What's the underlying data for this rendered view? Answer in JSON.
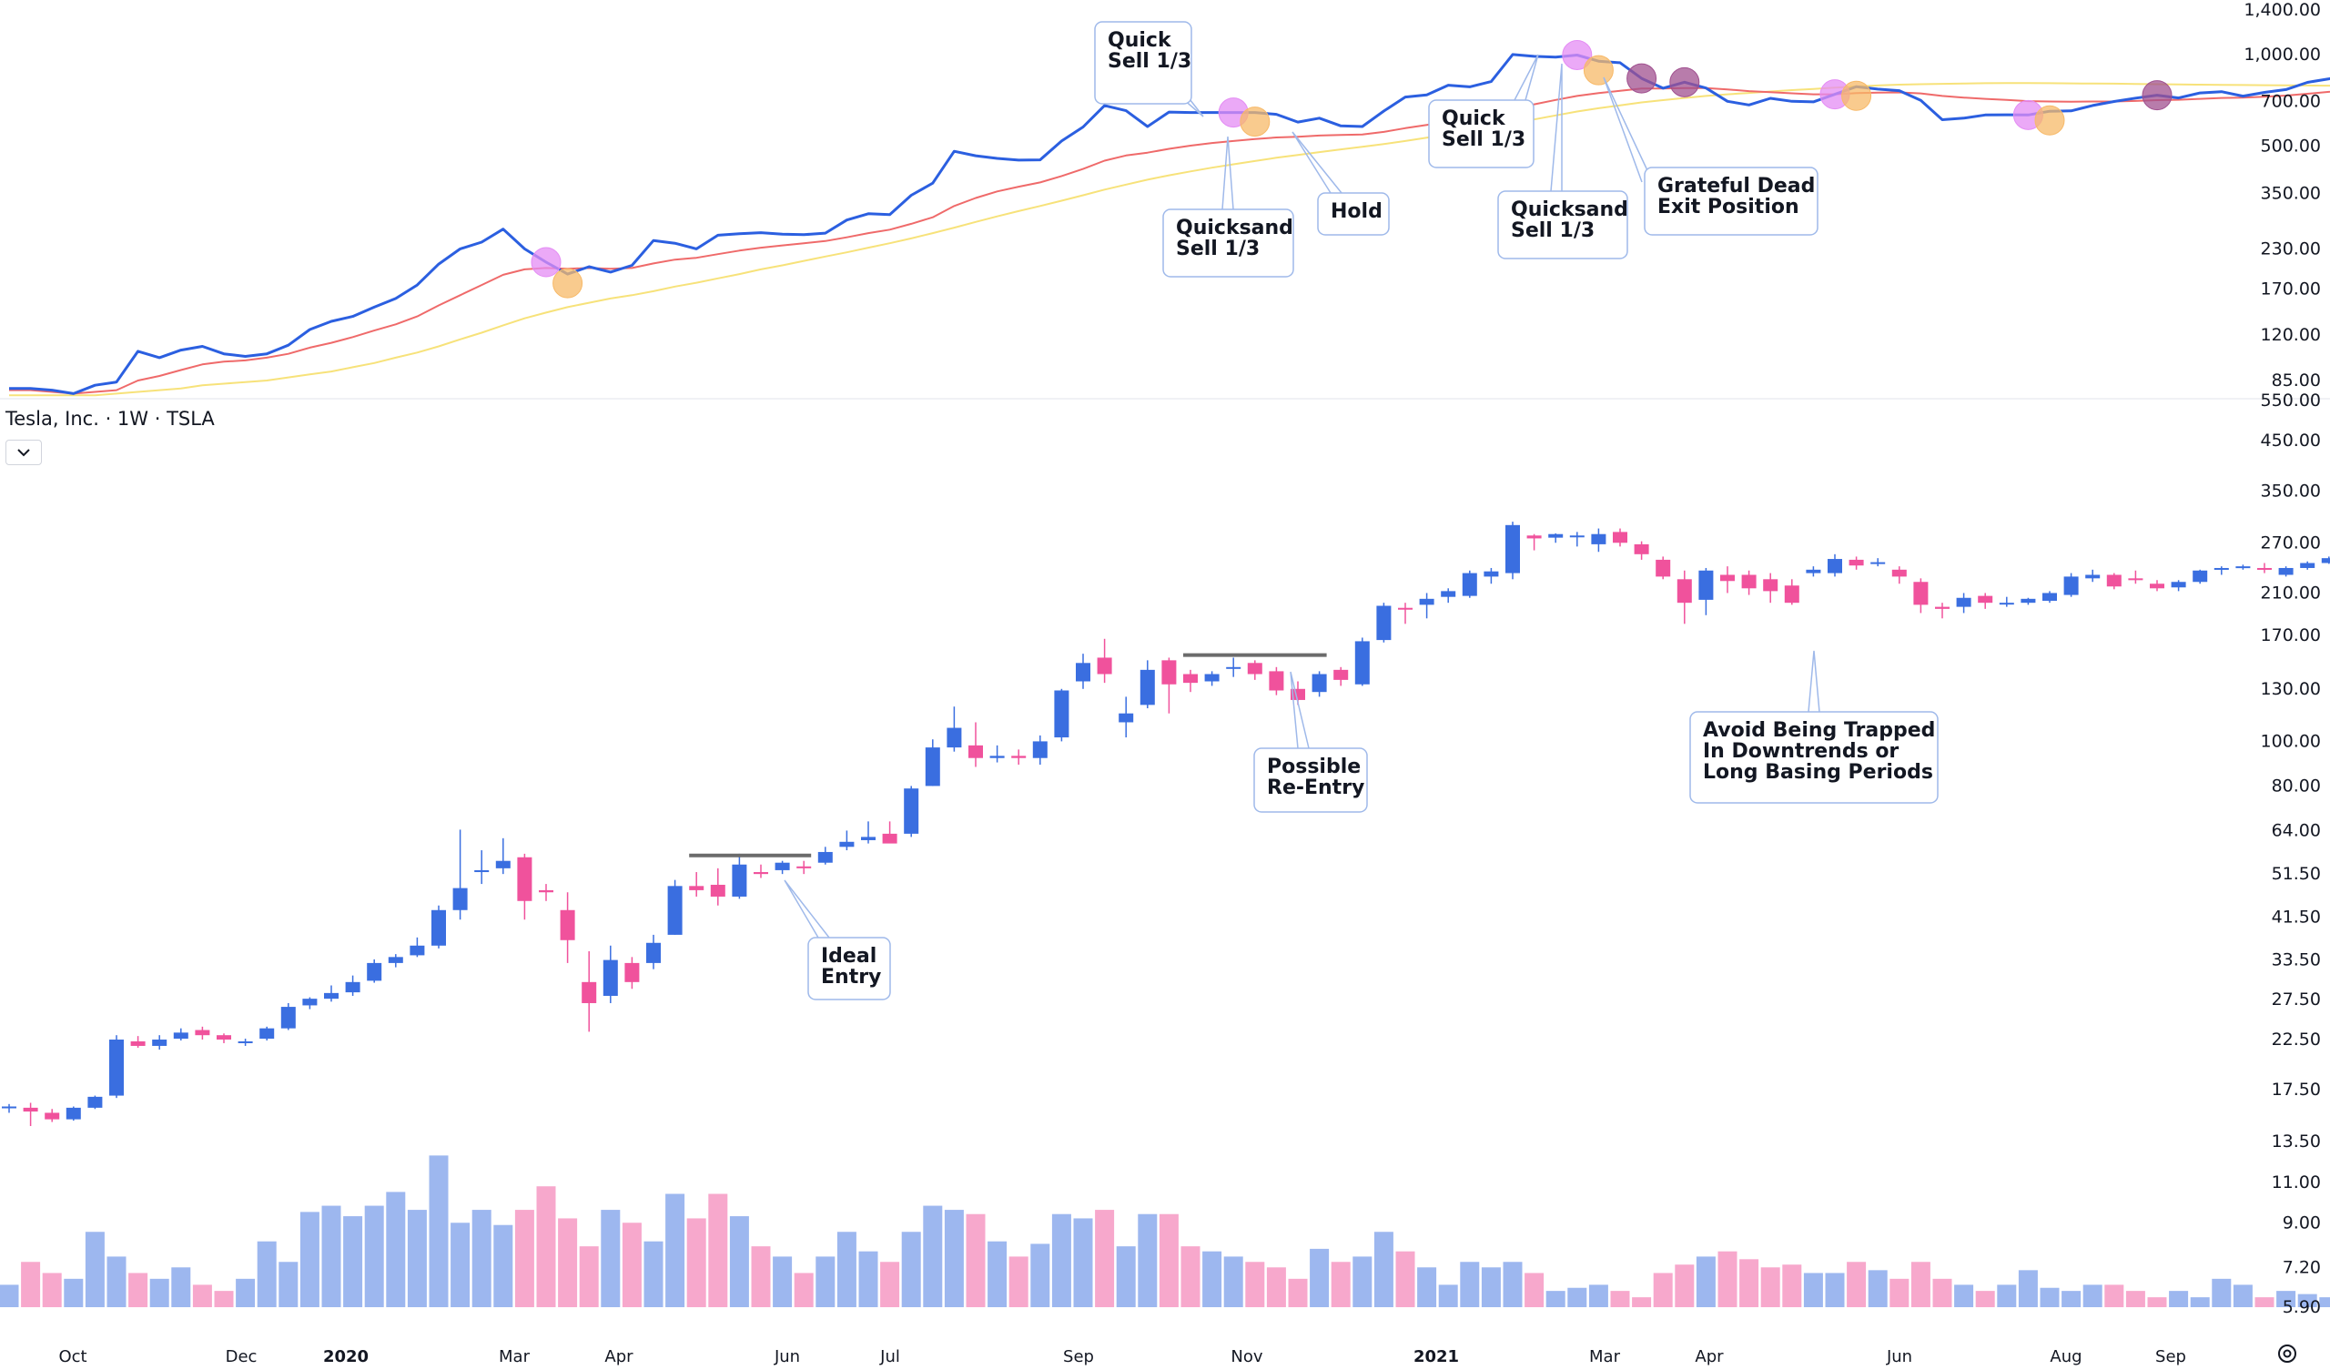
{
  "title": {
    "symbol_line": "Tesla, Inc. · 1W · TSLA"
  },
  "icons": {
    "collapse": "chevron-down-icon",
    "settings": "settings-icon"
  },
  "colors": {
    "bull": "#3a6ee0",
    "bear": "#f0529c",
    "vol_bull": "#9db7ef",
    "vol_bear": "#f7a8cc",
    "top_line": "#2b5fe0",
    "ema_red": "#ef6a6a",
    "sma_yellow": "#f7e27a",
    "marker_violet": "#e48cf4",
    "marker_orange": "#f7b968",
    "marker_purple": "#a0508f",
    "callout_border": "#9fb9ea"
  },
  "x_axis_labels": [
    "Oct",
    "Dec",
    "2020",
    "Mar",
    "Apr",
    "Jun",
    "Jul",
    "Sep",
    "Nov",
    "2021",
    "Mar",
    "Apr",
    "Jun",
    "Aug",
    "Sep"
  ],
  "top_axis_labels": [
    "1,400.00",
    "1,000.00",
    "700.00",
    "500.00",
    "350.00",
    "230.00",
    "170.00",
    "120.00",
    "85.00"
  ],
  "main_axis_labels": [
    "550.00",
    "450.00",
    "350.00",
    "270.00",
    "210.00",
    "170.00",
    "130.00",
    "100.00",
    "80.00",
    "64.00",
    "51.50",
    "41.50",
    "33.50",
    "27.50",
    "22.50",
    "17.50",
    "13.50",
    "11.00",
    "9.00",
    "7.20",
    "5.90"
  ],
  "annotations": [
    {
      "id": "quick-sell-1",
      "lines": [
        "Quick",
        "Sell 1/3"
      ]
    },
    {
      "id": "quicksand-sell-1",
      "lines": [
        "Quicksand",
        "Sell 1/3"
      ]
    },
    {
      "id": "hold",
      "lines": [
        "Hold"
      ]
    },
    {
      "id": "quick-sell-2",
      "lines": [
        "Quick",
        "Sell 1/3"
      ]
    },
    {
      "id": "quicksand-sell-2",
      "lines": [
        "Quicksand",
        "Sell 1/3"
      ]
    },
    {
      "id": "grateful-dead",
      "lines": [
        "Grateful Dead",
        "Exit Position"
      ]
    },
    {
      "id": "ideal-entry",
      "lines": [
        "Ideal",
        "Entry"
      ]
    },
    {
      "id": "possible-re-entry",
      "lines": [
        "Possible",
        "Re-Entry"
      ]
    },
    {
      "id": "avoid-trapped",
      "lines": [
        "Avoid Being Trapped",
        "In Downtrends or",
        "Long Basing Periods"
      ]
    }
  ],
  "chart_data": {
    "type": "candlestick",
    "symbol": "TSLA",
    "interval": "1W",
    "y_scale": "log",
    "price_ylim": [
      5.9,
      550
    ],
    "candles": [
      [
        16.0,
        16.3,
        15.6,
        16.1
      ],
      [
        16.0,
        16.4,
        14.6,
        15.7
      ],
      [
        15.6,
        15.9,
        14.9,
        15.1
      ],
      [
        15.1,
        16.1,
        15.0,
        16.0
      ],
      [
        16.0,
        17.0,
        15.9,
        16.9
      ],
      [
        17.0,
        23.0,
        16.8,
        22.5
      ],
      [
        22.3,
        22.9,
        21.6,
        21.8
      ],
      [
        21.8,
        23.0,
        21.4,
        22.5
      ],
      [
        22.6,
        23.8,
        22.4,
        23.3
      ],
      [
        23.6,
        24.0,
        22.5,
        23.0
      ],
      [
        23.0,
        23.2,
        22.1,
        22.5
      ],
      [
        22.2,
        22.6,
        21.8,
        22.3
      ],
      [
        22.6,
        24.0,
        22.4,
        23.8
      ],
      [
        23.8,
        27.0,
        23.6,
        26.5
      ],
      [
        26.7,
        27.8,
        26.2,
        27.6
      ],
      [
        27.6,
        29.5,
        27.2,
        28.4
      ],
      [
        28.5,
        31.0,
        28.0,
        30.0
      ],
      [
        30.2,
        33.6,
        29.9,
        33.0
      ],
      [
        33.0,
        34.5,
        32.3,
        34.0
      ],
      [
        34.3,
        37.5,
        34.0,
        36.0
      ],
      [
        36.0,
        44.0,
        35.5,
        43.0
      ],
      [
        43.0,
        64.3,
        41.0,
        48.0
      ],
      [
        52.0,
        58.0,
        49.0,
        52.5
      ],
      [
        53.0,
        61.6,
        51.5,
        55.0
      ],
      [
        56.0,
        57.0,
        41.0,
        45.0
      ],
      [
        47.5,
        49.0,
        45.0,
        47.0
      ],
      [
        43.0,
        47.0,
        33.0,
        37.0
      ],
      [
        30.0,
        35.0,
        23.4,
        27.0
      ],
      [
        28.0,
        36.0,
        27.0,
        33.5
      ],
      [
        33.0,
        34.0,
        29.0,
        30.0
      ],
      [
        33.0,
        38.0,
        32.0,
        36.5
      ],
      [
        38.0,
        50.0,
        38.0,
        48.5
      ],
      [
        48.5,
        52.0,
        46.0,
        47.5
      ],
      [
        48.8,
        53.0,
        44.0,
        46.0
      ],
      [
        46.0,
        57.0,
        45.5,
        54.0
      ],
      [
        52.0,
        54.0,
        50.5,
        51.5
      ],
      [
        52.5,
        55.0,
        51.5,
        54.5
      ],
      [
        53.5,
        55.0,
        51.5,
        53.0
      ],
      [
        54.5,
        59.0,
        54.0,
        57.5
      ],
      [
        59.0,
        64.0,
        58.0,
        60.5
      ],
      [
        61.0,
        67.0,
        60.0,
        62.0
      ],
      [
        63.0,
        67.0,
        62.0,
        60.0
      ],
      [
        63.0,
        80.0,
        62.0,
        79.0
      ],
      [
        80.0,
        101.0,
        80.0,
        97.0
      ],
      [
        97.0,
        119.0,
        95.0,
        107.0
      ],
      [
        98.0,
        110.0,
        88.0,
        92.0
      ],
      [
        92.0,
        98.0,
        90.0,
        93.0
      ],
      [
        93.0,
        96.0,
        89.0,
        92.0
      ],
      [
        92.0,
        103.0,
        89.0,
        100.0
      ],
      [
        102.0,
        130.0,
        100.0,
        129.0
      ],
      [
        135.0,
        155.0,
        130.0,
        148.0
      ],
      [
        152.0,
        167.0,
        134.0,
        140.0
      ],
      [
        110.0,
        125.0,
        102.0,
        115.0
      ],
      [
        120.0,
        150.0,
        118.0,
        143.0
      ],
      [
        150.0,
        152.0,
        115.0,
        133.0
      ],
      [
        140.0,
        143.0,
        128.0,
        134.0
      ],
      [
        135.0,
        142.0,
        132.0,
        140.0
      ],
      [
        145.0,
        152.0,
        138.0,
        145.0
      ],
      [
        148.0,
        150.0,
        136.0,
        140.0
      ],
      [
        142.0,
        145.0,
        126.0,
        129.0
      ],
      [
        130.0,
        135.0,
        120.0,
        123.0
      ],
      [
        128.0,
        142.0,
        125.0,
        140.0
      ],
      [
        143.0,
        145.0,
        132.0,
        136.0
      ],
      [
        133.0,
        168.0,
        132.0,
        165.0
      ],
      [
        166.0,
        200.0,
        164.0,
        197.0
      ],
      [
        195.0,
        200.0,
        180.0,
        194.0
      ],
      [
        198.0,
        210.0,
        185.0,
        204.0
      ],
      [
        206.0,
        215.0,
        200.0,
        212.0
      ],
      [
        207.0,
        235.0,
        205.0,
        232.0
      ],
      [
        228.0,
        238.0,
        220.0,
        234.0
      ],
      [
        232.0,
        300.0,
        225.0,
        295.0
      ],
      [
        280.0,
        282.0,
        260.0,
        276.0
      ],
      [
        277.0,
        283.0,
        270.0,
        282.0
      ],
      [
        279.0,
        285.0,
        265.0,
        280.0
      ],
      [
        268.0,
        290.0,
        258.0,
        282.0
      ],
      [
        285.0,
        290.0,
        265.0,
        270.0
      ],
      [
        268.0,
        272.0,
        248.0,
        255.0
      ],
      [
        248.0,
        252.0,
        225.0,
        228.0
      ],
      [
        225.0,
        235.0,
        180.0,
        200.0
      ],
      [
        203.0,
        238.0,
        188.0,
        235.0
      ],
      [
        230.0,
        240.0,
        210.0,
        223.0
      ],
      [
        230.0,
        235.0,
        208.0,
        215.0
      ],
      [
        225.0,
        232.0,
        200.0,
        212.0
      ],
      [
        218.0,
        225.0,
        198.0,
        200.0
      ],
      [
        232.0,
        240.0,
        228.0,
        236.0
      ],
      [
        232.0,
        255.0,
        228.0,
        249.0
      ],
      [
        248.0,
        252.0,
        236.0,
        241.0
      ],
      [
        244.0,
        250.0,
        240.0,
        245.0
      ],
      [
        236.0,
        240.0,
        220.0,
        228.0
      ],
      [
        222.0,
        226.0,
        190.0,
        198.0
      ],
      [
        196.0,
        200.0,
        185.0,
        194.0
      ],
      [
        196.0,
        210.0,
        190.0,
        205.0
      ],
      [
        207.0,
        210.0,
        194.0,
        200.0
      ],
      [
        200.0,
        206.0,
        196.0,
        200.0
      ],
      [
        200.0,
        205.0,
        198.0,
        204.0
      ],
      [
        202.0,
        212.0,
        200.0,
        210.0
      ],
      [
        208.0,
        232.0,
        206.0,
        228.0
      ],
      [
        226.0,
        236.0,
        222.0,
        230.0
      ],
      [
        230.0,
        232.0,
        214.0,
        217.0
      ],
      [
        226.0,
        235.0,
        220.0,
        224.0
      ],
      [
        220.0,
        224.0,
        212.0,
        215.0
      ],
      [
        216.0,
        224.0,
        212.0,
        222.0
      ],
      [
        222.0,
        236.0,
        220.0,
        235.0
      ],
      [
        236.0,
        240.0,
        230.0,
        238.0
      ],
      [
        238.0,
        242.0,
        236.0,
        240.0
      ],
      [
        238.0,
        244.0,
        232.0,
        236.0
      ],
      [
        230.0,
        240.0,
        228.0,
        238.0
      ],
      [
        238.0,
        246.0,
        236.0,
        244.0
      ],
      [
        244.0,
        252.0,
        243.0,
        250.0
      ],
      [
        250.0,
        254.0,
        248.0,
        252.0
      ],
      [
        248.0,
        256.0,
        246.0,
        254.0
      ],
      [
        250.0,
        262.0,
        248.0,
        260.0
      ],
      [
        255.0,
        264.0,
        252.0,
        258.0
      ]
    ],
    "volume": [
      6.6,
      7.4,
      7.0,
      6.8,
      8.6,
      7.6,
      7.0,
      6.8,
      7.2,
      6.6,
      6.4,
      6.8,
      8.2,
      7.4,
      9.5,
      9.8,
      9.3,
      9.8,
      10.5,
      9.6,
      12.6,
      9.0,
      9.6,
      8.9,
      9.6,
      10.8,
      9.2,
      8.0,
      9.6,
      9.0,
      8.2,
      10.4,
      9.2,
      10.4,
      9.3,
      8.0,
      7.6,
      7.0,
      7.6,
      8.6,
      7.8,
      7.4,
      8.6,
      9.8,
      9.6,
      9.4,
      8.2,
      7.6,
      8.1,
      9.4,
      9.2,
      9.6,
      8.0,
      9.4,
      9.4,
      8.0,
      7.8,
      7.6,
      7.4,
      7.2,
      6.8,
      7.9,
      7.4,
      7.6,
      8.6,
      7.8,
      7.2,
      6.6,
      7.4,
      7.2,
      7.4,
      7.0,
      6.4,
      6.5,
      6.6,
      6.4,
      6.2,
      7.0,
      7.3,
      7.6,
      7.8,
      7.5,
      7.2,
      7.3,
      7.0,
      7.0,
      7.4,
      7.1,
      6.8,
      7.4,
      6.8,
      6.6,
      6.4,
      6.6,
      7.1,
      6.5,
      6.4,
      6.6,
      6.6,
      6.4,
      6.2,
      6.4,
      6.2,
      6.8,
      6.6,
      6.2,
      6.4,
      6.3,
      6.2,
      6.4,
      6.5,
      6.4,
      6.5
    ],
    "top_panel": {
      "ylim": [
        85,
        1400
      ],
      "price": [
        80,
        80,
        79,
        77,
        82,
        84,
        106,
        101,
        107,
        110,
        104,
        102,
        104,
        111,
        125,
        133,
        138,
        148,
        158,
        175,
        205,
        230,
        242,
        267,
        230,
        208,
        190,
        201,
        193,
        203,
        245,
        240,
        230,
        255,
        258,
        260,
        257,
        256,
        259,
        286,
        300,
        298,
        345,
        378,
        481,
        465,
        456,
        450,
        451,
        520,
        578,
        680,
        654,
        580,
        647,
        645,
        645,
        645,
        645,
        636,
        600,
        618,
        583,
        580,
        652,
        725,
        737,
        793,
        783,
        815,
        1000,
        986,
        981,
        996,
        951,
        940,
        835,
        775,
        811,
        776,
        702,
        683,
        718,
        702,
        699,
        740,
        784,
        770,
        761,
        707,
        611,
        618,
        633,
        634,
        633,
        651,
        653,
        680,
        701,
        719,
        735,
        720,
        748,
        755,
        730,
        751,
        767,
        810,
        832,
        858,
        878,
        897,
        888
      ],
      "ema_red": [
        79,
        79,
        78,
        77,
        78,
        79,
        85,
        88,
        92,
        96,
        98,
        99,
        101,
        104,
        109,
        113,
        118,
        124,
        130,
        138,
        150,
        162,
        175,
        189,
        197,
        199,
        198,
        199,
        198,
        199,
        206,
        212,
        215,
        221,
        227,
        232,
        236,
        240,
        244,
        251,
        259,
        266,
        278,
        292,
        318,
        338,
        355,
        368,
        380,
        399,
        421,
        448,
        466,
        476,
        490,
        502,
        512,
        520,
        528,
        534,
        537,
        542,
        544,
        546,
        557,
        573,
        587,
        603,
        616,
        630,
        660,
        686,
        709,
        731,
        747,
        760,
        773,
        773,
        776,
        776,
        768,
        758,
        752,
        746,
        740,
        740,
        747,
        750,
        751,
        745,
        731,
        722,
        715,
        709,
        703,
        701,
        700,
        701,
        701,
        704,
        708,
        710,
        715,
        720,
        722,
        727,
        733,
        743,
        754,
        767,
        780,
        793,
        804
      ],
      "sma_yellow": [
        76,
        76,
        76,
        76,
        76,
        77,
        78,
        79,
        80,
        82,
        83,
        84,
        85,
        87,
        89,
        91,
        94,
        97,
        101,
        105,
        110,
        116,
        122,
        129,
        136,
        142,
        148,
        153,
        158,
        162,
        167,
        173,
        178,
        184,
        190,
        197,
        203,
        210,
        217,
        224,
        232,
        240,
        249,
        259,
        270,
        282,
        294,
        306,
        318,
        331,
        345,
        360,
        374,
        388,
        401,
        413,
        425,
        436,
        447,
        458,
        468,
        478,
        488,
        498,
        508,
        520,
        533,
        547,
        561,
        576,
        594,
        612,
        631,
        650,
        666,
        681,
        696,
        708,
        720,
        731,
        740,
        748,
        756,
        764,
        771,
        778,
        785,
        791,
        796,
        799,
        801,
        803,
        805,
        806,
        806,
        805,
        804,
        803,
        802,
        800,
        799,
        797,
        796,
        795,
        794,
        793,
        792,
        791,
        790,
        789,
        788,
        787,
        786
      ]
    },
    "markers": [
      {
        "type": "violet",
        "index": 25
      },
      {
        "type": "orange",
        "index": 26
      },
      {
        "type": "violet",
        "index": 57
      },
      {
        "type": "orange",
        "index": 58
      },
      {
        "type": "violet",
        "index": 73
      },
      {
        "type": "orange",
        "index": 74
      },
      {
        "type": "purple",
        "index": 76
      },
      {
        "type": "purple",
        "index": 78
      },
      {
        "type": "violet",
        "index": 85
      },
      {
        "type": "orange",
        "index": 86
      },
      {
        "type": "violet",
        "index": 94
      },
      {
        "type": "orange",
        "index": 95
      },
      {
        "type": "purple",
        "index": 100
      }
    ],
    "resistance_lines": [
      {
        "from_index": 32,
        "to_index": 37,
        "price": 56.5
      },
      {
        "from_index": 55,
        "to_index": 61,
        "price": 154
      }
    ]
  }
}
